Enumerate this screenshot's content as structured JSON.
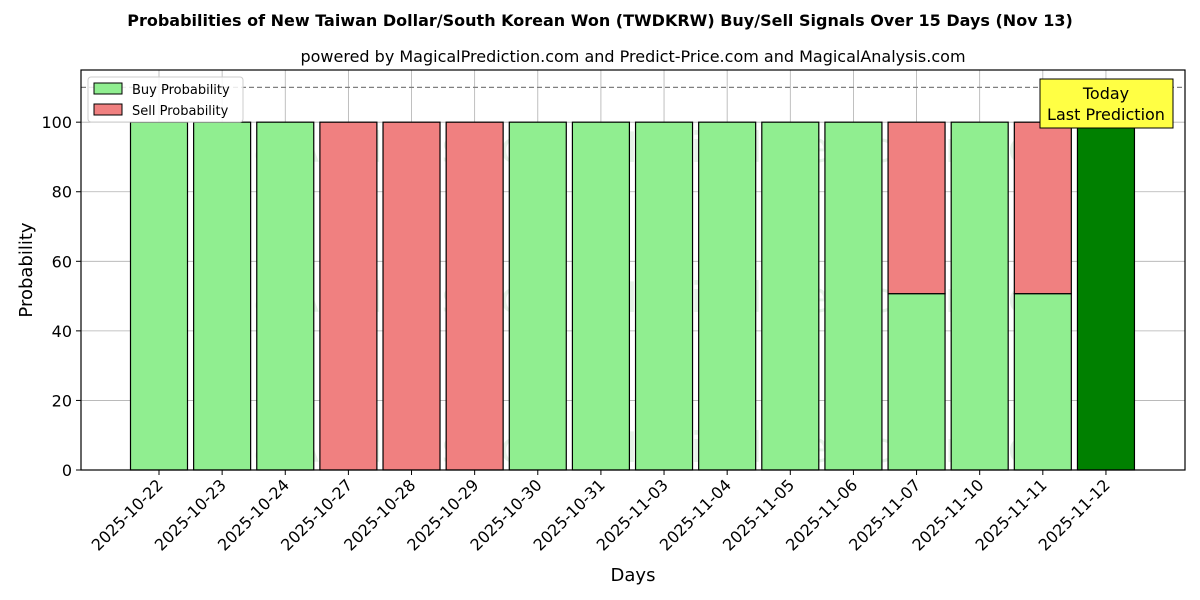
{
  "chart_data": {
    "type": "bar",
    "stacked": true,
    "title": "Probabilities of New Taiwan Dollar/South Korean Won (TWDKRW) Buy/Sell Signals Over 15 Days (Nov 13)",
    "subtitle": "powered by MagicalPrediction.com and Predict-Price.com and MagicalAnalysis.com",
    "xlabel": "Days",
    "ylabel": "Probability",
    "ylim": [
      0,
      115
    ],
    "yticks": [
      0,
      20,
      40,
      60,
      80,
      100
    ],
    "grid": true,
    "reference_line": {
      "y": 110,
      "style": "dashed",
      "color": "#808080"
    },
    "legend": {
      "position": "upper left",
      "entries": [
        "Buy Probability",
        "Sell Probability"
      ]
    },
    "categories": [
      "2025-10-22",
      "2025-10-23",
      "2025-10-24",
      "2025-10-27",
      "2025-10-28",
      "2025-10-29",
      "2025-10-30",
      "2025-10-31",
      "2025-11-03",
      "2025-11-04",
      "2025-11-05",
      "2025-11-06",
      "2025-11-07",
      "2025-11-10",
      "2025-11-11",
      "2025-11-12"
    ],
    "series": [
      {
        "name": "Buy Probability",
        "color": "#90ee90",
        "values": [
          100,
          100,
          100,
          0,
          0,
          0,
          100,
          100,
          100,
          100,
          100,
          100,
          50.7,
          100,
          50.7,
          100
        ]
      },
      {
        "name": "Sell Probability",
        "color": "#f08080",
        "values": [
          0,
          0,
          0,
          100,
          100,
          100,
          0,
          0,
          0,
          0,
          0,
          0,
          49.3,
          0,
          49.3,
          0
        ]
      }
    ],
    "highlight": {
      "index": 15,
      "color": "#008000",
      "label_line1": "Today",
      "label_line2": "Last Prediction",
      "label_bg": "#ffff44"
    },
    "watermarks": [
      "MagicalAnalysis.com",
      "MagicalPrediction.com"
    ]
  }
}
